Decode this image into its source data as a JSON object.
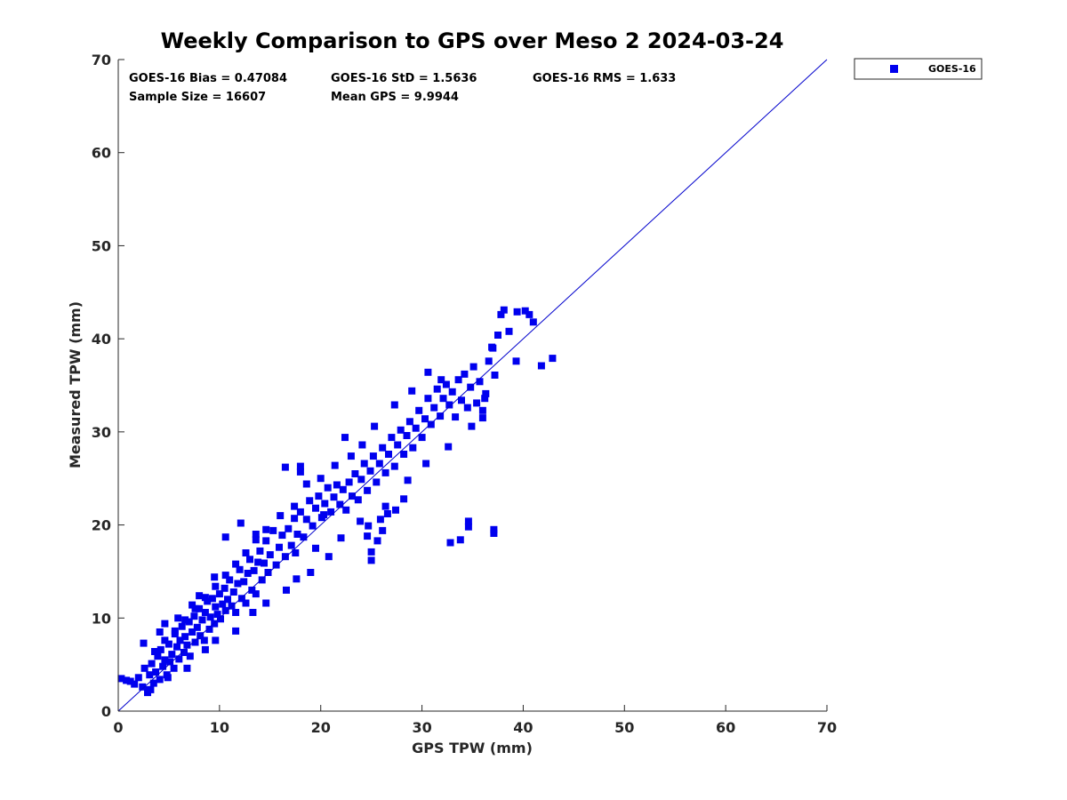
{
  "chart_data": {
    "type": "scatter",
    "title": "Weekly Comparison to GPS over Meso 2 2024-03-24",
    "xlabel": "GPS TPW (mm)",
    "ylabel": "Measured TPW (mm)",
    "xlim": [
      0,
      70
    ],
    "ylim": [
      0,
      70
    ],
    "xticks": [
      "0",
      "10",
      "20",
      "30",
      "40",
      "50",
      "60",
      "70"
    ],
    "yticks": [
      "0",
      "10",
      "20",
      "30",
      "40",
      "50",
      "60",
      "70"
    ],
    "grid": false,
    "legend_position": "outside-top-right",
    "reference_line": {
      "name": "1:1 line",
      "x": [
        0,
        70
      ],
      "y": [
        0,
        70
      ],
      "color": "#0000cc"
    },
    "stats": {
      "bias": "GOES-16 Bias = 0.47084",
      "std": "GOES-16 StD = 1.5636",
      "rms": "GOES-16 RMS = 1.633",
      "sample_size": "Sample Size = 16607",
      "mean_gps": "Mean GPS = 9.9944"
    },
    "series": [
      {
        "name": "GOES-16",
        "marker": "square",
        "color": "#0000ee",
        "points": [
          [
            0.3,
            3.5
          ],
          [
            0.8,
            3.3
          ],
          [
            1.2,
            3.2
          ],
          [
            1.6,
            2.9
          ],
          [
            2.0,
            3.6
          ],
          [
            2.4,
            2.6
          ],
          [
            2.6,
            4.6
          ],
          [
            2.9,
            2.3
          ],
          [
            3.1,
            3.9
          ],
          [
            3.3,
            5.1
          ],
          [
            3.5,
            3.0
          ],
          [
            3.7,
            4.2
          ],
          [
            3.9,
            5.9
          ],
          [
            4.1,
            3.4
          ],
          [
            4.2,
            6.6
          ],
          [
            4.4,
            4.8
          ],
          [
            4.6,
            5.5
          ],
          [
            4.8,
            3.9
          ],
          [
            5.0,
            7.2
          ],
          [
            5.1,
            5.3
          ],
          [
            5.3,
            6.1
          ],
          [
            5.5,
            4.6
          ],
          [
            5.6,
            8.3
          ],
          [
            5.8,
            6.9
          ],
          [
            6.0,
            5.6
          ],
          [
            6.1,
            7.6
          ],
          [
            6.3,
            9.1
          ],
          [
            6.5,
            6.3
          ],
          [
            6.6,
            8.0
          ],
          [
            6.8,
            7.1
          ],
          [
            7.0,
            9.6
          ],
          [
            7.1,
            5.9
          ],
          [
            7.3,
            8.5
          ],
          [
            7.5,
            10.2
          ],
          [
            7.6,
            7.4
          ],
          [
            7.8,
            9.0
          ],
          [
            8.0,
            11.0
          ],
          [
            8.1,
            8.1
          ],
          [
            8.3,
            9.8
          ],
          [
            8.5,
            7.6
          ],
          [
            8.6,
            10.6
          ],
          [
            8.8,
            11.8
          ],
          [
            9.0,
            8.8
          ],
          [
            9.1,
            10.1
          ],
          [
            9.3,
            12.1
          ],
          [
            9.5,
            9.4
          ],
          [
            9.6,
            11.2
          ],
          [
            9.8,
            10.4
          ],
          [
            10.0,
            12.6
          ],
          [
            10.1,
            9.9
          ],
          [
            10.3,
            11.5
          ],
          [
            10.5,
            13.2
          ],
          [
            10.6,
            10.8
          ],
          [
            10.8,
            12.0
          ],
          [
            11.0,
            14.1
          ],
          [
            11.2,
            11.3
          ],
          [
            11.4,
            12.8
          ],
          [
            11.6,
            10.6
          ],
          [
            11.8,
            13.7
          ],
          [
            12.0,
            15.2
          ],
          [
            12.2,
            12.1
          ],
          [
            12.4,
            13.9
          ],
          [
            12.6,
            11.6
          ],
          [
            12.8,
            14.8
          ],
          [
            13.0,
            16.3
          ],
          [
            13.2,
            13.0
          ],
          [
            13.4,
            15.1
          ],
          [
            13.6,
            12.6
          ],
          [
            13.8,
            16.0
          ],
          [
            14.0,
            17.2
          ],
          [
            14.2,
            14.1
          ],
          [
            14.4,
            15.9
          ],
          [
            14.6,
            18.3
          ],
          [
            14.8,
            14.9
          ],
          [
            15.0,
            16.8
          ],
          [
            15.3,
            19.4
          ],
          [
            15.6,
            15.7
          ],
          [
            15.9,
            17.6
          ],
          [
            16.2,
            18.9
          ],
          [
            16.5,
            16.6
          ],
          [
            16.8,
            19.6
          ],
          [
            17.1,
            17.8
          ],
          [
            17.4,
            20.7
          ],
          [
            17.7,
            19.0
          ],
          [
            18.0,
            21.4
          ],
          [
            18.3,
            18.7
          ],
          [
            18.6,
            20.6
          ],
          [
            18.9,
            22.6
          ],
          [
            19.2,
            19.9
          ],
          [
            19.5,
            21.8
          ],
          [
            19.8,
            23.1
          ],
          [
            20.1,
            20.8
          ],
          [
            20.4,
            22.3
          ],
          [
            20.7,
            24.0
          ],
          [
            21.0,
            21.4
          ],
          [
            21.3,
            23.0
          ],
          [
            21.6,
            24.3
          ],
          [
            21.9,
            22.2
          ],
          [
            22.2,
            23.8
          ],
          [
            22.5,
            21.6
          ],
          [
            22.8,
            24.6
          ],
          [
            23.1,
            23.1
          ],
          [
            23.4,
            25.5
          ],
          [
            23.7,
            22.7
          ],
          [
            24.0,
            24.9
          ],
          [
            24.3,
            26.6
          ],
          [
            24.6,
            23.7
          ],
          [
            24.9,
            25.8
          ],
          [
            25.2,
            27.4
          ],
          [
            25.5,
            24.6
          ],
          [
            25.8,
            26.6
          ],
          [
            26.1,
            28.3
          ],
          [
            26.4,
            25.6
          ],
          [
            26.7,
            27.6
          ],
          [
            27.0,
            29.4
          ],
          [
            27.3,
            26.3
          ],
          [
            27.6,
            28.6
          ],
          [
            27.9,
            30.2
          ],
          [
            28.2,
            27.6
          ],
          [
            28.5,
            29.6
          ],
          [
            28.8,
            31.1
          ],
          [
            29.1,
            28.3
          ],
          [
            29.4,
            30.4
          ],
          [
            29.7,
            32.3
          ],
          [
            30.0,
            29.4
          ],
          [
            30.3,
            31.4
          ],
          [
            30.6,
            33.6
          ],
          [
            30.9,
            30.8
          ],
          [
            31.2,
            32.6
          ],
          [
            31.5,
            34.6
          ],
          [
            31.8,
            31.7
          ],
          [
            32.1,
            33.6
          ],
          [
            32.4,
            35.1
          ],
          [
            32.7,
            32.9
          ],
          [
            33.0,
            34.3
          ],
          [
            33.3,
            31.6
          ],
          [
            33.6,
            35.6
          ],
          [
            33.9,
            33.4
          ],
          [
            34.2,
            36.2
          ],
          [
            34.5,
            32.6
          ],
          [
            34.8,
            34.8
          ],
          [
            35.1,
            37.0
          ],
          [
            35.4,
            33.1
          ],
          [
            35.7,
            35.4
          ],
          [
            36.0,
            32.3
          ],
          [
            36.3,
            34.1
          ],
          [
            36.6,
            37.6
          ],
          [
            36.9,
            39.1
          ],
          [
            37.2,
            36.1
          ],
          [
            37.5,
            40.4
          ],
          [
            37.8,
            42.6
          ],
          [
            38.1,
            43.1
          ],
          [
            38.6,
            40.8
          ],
          [
            39.4,
            42.9
          ],
          [
            40.2,
            43.0
          ],
          [
            40.6,
            42.6
          ],
          [
            41.0,
            41.8
          ],
          [
            36.2,
            33.6
          ],
          [
            36.0,
            31.5
          ],
          [
            37.0,
            39.0
          ],
          [
            39.3,
            37.6
          ],
          [
            41.8,
            37.1
          ],
          [
            42.9,
            37.9
          ],
          [
            37.1,
            19.5
          ],
          [
            37.1,
            19.1
          ],
          [
            34.6,
            20.4
          ],
          [
            34.6,
            19.8
          ],
          [
            33.8,
            18.4
          ],
          [
            32.8,
            18.1
          ],
          [
            25.0,
            17.1
          ],
          [
            25.0,
            16.2
          ],
          [
            25.6,
            18.3
          ],
          [
            26.1,
            19.4
          ],
          [
            24.7,
            19.9
          ],
          [
            24.6,
            18.8
          ],
          [
            28.2,
            22.8
          ],
          [
            27.4,
            21.6
          ],
          [
            26.6,
            21.2
          ],
          [
            25.9,
            20.6
          ],
          [
            20.3,
            21.1
          ],
          [
            17.5,
            17.0
          ],
          [
            19.5,
            17.5
          ],
          [
            22.4,
            29.4
          ],
          [
            18.0,
            26.3
          ],
          [
            18.0,
            25.7
          ],
          [
            16.5,
            26.2
          ],
          [
            13.6,
            19.0
          ],
          [
            12.1,
            20.2
          ],
          [
            10.6,
            18.7
          ],
          [
            9.5,
            14.4
          ],
          [
            8.0,
            12.4
          ],
          [
            7.3,
            11.4
          ],
          [
            5.9,
            10.0
          ],
          [
            4.6,
            9.4
          ],
          [
            2.5,
            7.3
          ],
          [
            4.1,
            8.5
          ],
          [
            3.2,
            2.3
          ],
          [
            2.9,
            2.0
          ],
          [
            4.9,
            3.6
          ],
          [
            6.8,
            4.6
          ],
          [
            8.6,
            6.6
          ],
          [
            9.6,
            7.6
          ],
          [
            11.6,
            8.6
          ],
          [
            13.3,
            10.6
          ],
          [
            14.6,
            11.6
          ],
          [
            16.6,
            13.0
          ],
          [
            17.6,
            14.2
          ],
          [
            19.0,
            14.9
          ],
          [
            20.8,
            16.6
          ],
          [
            22.0,
            18.6
          ],
          [
            23.9,
            20.4
          ],
          [
            26.4,
            22.0
          ],
          [
            28.6,
            24.8
          ],
          [
            30.4,
            26.6
          ],
          [
            32.6,
            28.4
          ],
          [
            34.9,
            30.6
          ],
          [
            31.9,
            35.6
          ],
          [
            30.6,
            36.4
          ],
          [
            29.0,
            34.4
          ],
          [
            27.3,
            32.9
          ],
          [
            25.3,
            30.6
          ],
          [
            24.1,
            28.6
          ],
          [
            23.0,
            27.4
          ],
          [
            21.4,
            26.4
          ],
          [
            20.0,
            25.0
          ],
          [
            18.6,
            24.4
          ],
          [
            17.4,
            22.0
          ],
          [
            16.0,
            21.0
          ],
          [
            14.6,
            19.5
          ],
          [
            13.6,
            18.4
          ],
          [
            12.6,
            17.0
          ],
          [
            11.6,
            15.8
          ],
          [
            10.6,
            14.6
          ],
          [
            9.6,
            13.4
          ],
          [
            8.6,
            12.2
          ],
          [
            7.6,
            11.0
          ],
          [
            6.6,
            9.8
          ],
          [
            5.6,
            8.6
          ],
          [
            4.6,
            7.6
          ],
          [
            3.6,
            6.4
          ]
        ]
      }
    ]
  }
}
